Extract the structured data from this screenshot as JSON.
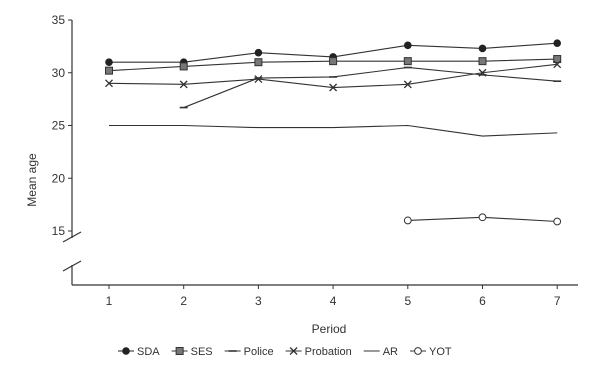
{
  "chart_data": {
    "type": "line",
    "xlabel": "Period",
    "ylabel": "Mean age",
    "x": [
      1,
      2,
      3,
      4,
      5,
      6,
      7
    ],
    "x_ticks": [
      "1",
      "2",
      "3",
      "4",
      "5",
      "6",
      "7"
    ],
    "y_ticks": [
      "15",
      "20",
      "25",
      "30",
      "35"
    ],
    "ylim": [
      15,
      35
    ],
    "broken_y_axis": true,
    "grid": false,
    "legend_position": "bottom",
    "series": [
      {
        "name": "SDA",
        "marker": "filled-circle",
        "values": [
          31.0,
          31.0,
          31.9,
          31.5,
          32.6,
          32.3,
          32.8
        ]
      },
      {
        "name": "SES",
        "marker": "square",
        "values": [
          30.2,
          30.6,
          31.0,
          31.1,
          31.1,
          31.1,
          31.3
        ]
      },
      {
        "name": "Police",
        "marker": "dash",
        "values": [
          null,
          26.7,
          29.5,
          29.6,
          30.5,
          29.8,
          29.2
        ]
      },
      {
        "name": "Probation",
        "marker": "x",
        "values": [
          29.0,
          28.9,
          29.4,
          28.6,
          28.9,
          30.0,
          30.8
        ]
      },
      {
        "name": "AR",
        "marker": "none",
        "values": [
          25.0,
          25.0,
          24.8,
          24.8,
          25.0,
          24.0,
          24.3
        ]
      },
      {
        "name": "YOT",
        "marker": "open-circle",
        "values": [
          null,
          null,
          null,
          null,
          16.0,
          16.3,
          15.9
        ]
      }
    ]
  }
}
